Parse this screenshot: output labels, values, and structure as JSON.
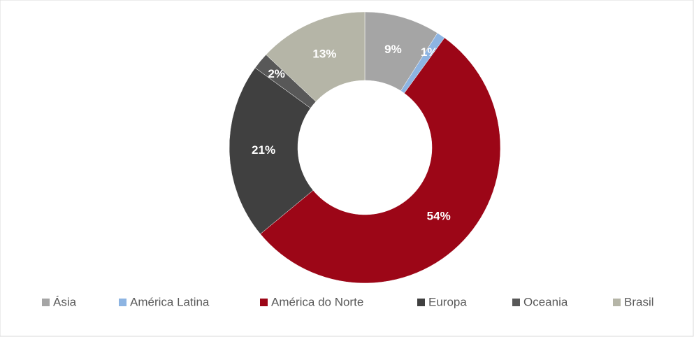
{
  "chart_data": {
    "type": "donut",
    "categories": [
      "Ásia",
      "América Latina",
      "América do Norte",
      "Europa",
      "Oceania",
      "Brasil"
    ],
    "values": [
      9,
      1,
      54,
      21,
      2,
      13
    ],
    "value_labels": [
      "9%",
      "1%",
      "54%",
      "21%",
      "2%",
      "13%"
    ],
    "colors": [
      "#a5a5a5",
      "#8db4e2",
      "#9c0617",
      "#404040",
      "#585858",
      "#b5b5a7"
    ],
    "legend": "bottom"
  }
}
